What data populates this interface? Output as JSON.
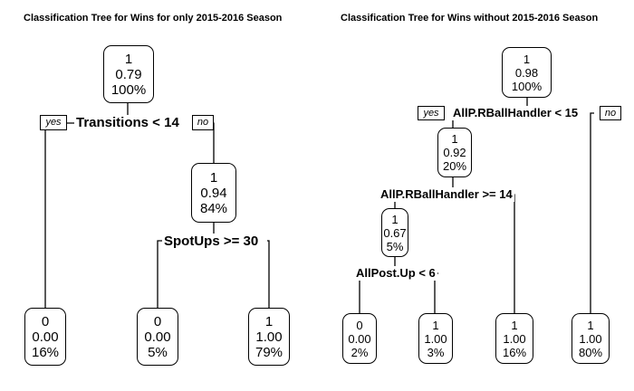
{
  "left_tree": {
    "title": "Classification Tree for Wins for only 2015-2016 Season",
    "root": {
      "class": "1",
      "prob": "0.79",
      "pct": "100%"
    },
    "split_root": {
      "label": "Transitions < 14",
      "yes": "yes",
      "no": "no"
    },
    "node_r1": {
      "class": "1",
      "prob": "0.94",
      "pct": "84%"
    },
    "split_r1": {
      "label": "SpotUps >= 30"
    },
    "leaf_1": {
      "class": "0",
      "prob": "0.00",
      "pct": "16%"
    },
    "leaf_2": {
      "class": "0",
      "prob": "0.00",
      "pct": "5%"
    },
    "leaf_3": {
      "class": "1",
      "prob": "1.00",
      "pct": "79%"
    }
  },
  "right_tree": {
    "title": "Classification Tree for Wins without 2015-2016 Season",
    "root": {
      "class": "1",
      "prob": "0.98",
      "pct": "100%"
    },
    "split_root": {
      "label": "AllP.RBallHandler < 15",
      "yes": "yes",
      "no": "no"
    },
    "node_l1": {
      "class": "1",
      "prob": "0.92",
      "pct": "20%"
    },
    "split_l1": {
      "label": "AllP.RBallHandler >= 14"
    },
    "node_l2": {
      "class": "1",
      "prob": "0.67",
      "pct": "5%"
    },
    "split_l2": {
      "label": "AllPost.Up < 6"
    },
    "leaf_1": {
      "class": "0",
      "prob": "0.00",
      "pct": "2%"
    },
    "leaf_2": {
      "class": "1",
      "prob": "1.00",
      "pct": "3%"
    },
    "leaf_3": {
      "class": "1",
      "prob": "1.00",
      "pct": "16%"
    },
    "leaf_4": {
      "class": "1",
      "prob": "1.00",
      "pct": "80%"
    }
  }
}
